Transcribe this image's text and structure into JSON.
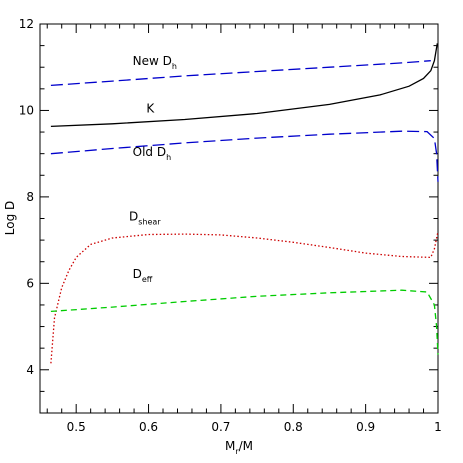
{
  "chart_data": {
    "type": "line",
    "title": "",
    "xlabel": "M_r/M",
    "ylabel": "Log D",
    "xlim": [
      0.45,
      1.0
    ],
    "ylim": [
      3.0,
      12.0
    ],
    "grid": false,
    "x_ticks": [
      0.5,
      0.6,
      0.7,
      0.8,
      0.9,
      1.0
    ],
    "x_tick_labels": [
      "0.5",
      "0.6",
      "0.7",
      "0.8",
      "0.9",
      "1"
    ],
    "y_ticks": [
      4,
      6,
      8,
      10,
      12
    ],
    "y_tick_labels": [
      "4",
      "6",
      "8",
      "10",
      "12"
    ],
    "series": [
      {
        "name": "New D_h",
        "color": "#0000cc",
        "dash": "long-dash",
        "x": [
          0.465,
          0.55,
          0.65,
          0.75,
          0.85,
          0.95,
          0.99
        ],
        "y": [
          10.58,
          10.68,
          10.8,
          10.9,
          11.0,
          11.1,
          11.15
        ]
      },
      {
        "name": "K",
        "color": "#000000",
        "dash": "solid",
        "x": [
          0.465,
          0.55,
          0.65,
          0.75,
          0.85,
          0.92,
          0.96,
          0.98,
          0.99,
          0.995,
          0.999
        ],
        "y": [
          9.63,
          9.69,
          9.79,
          9.93,
          10.14,
          10.36,
          10.56,
          10.74,
          10.92,
          11.15,
          11.55
        ]
      },
      {
        "name": "Old D_h",
        "color": "#0000cc",
        "dash": "long-dash",
        "x": [
          0.465,
          0.55,
          0.65,
          0.75,
          0.85,
          0.95,
          0.985,
          0.995,
          0.998,
          1.0
        ],
        "y": [
          9.0,
          9.12,
          9.25,
          9.36,
          9.45,
          9.52,
          9.51,
          9.35,
          9.0,
          8.35
        ]
      },
      {
        "name": "D_shear",
        "color": "#cc0000",
        "dash": "dotted",
        "x": [
          0.465,
          0.47,
          0.48,
          0.49,
          0.5,
          0.52,
          0.55,
          0.6,
          0.65,
          0.7,
          0.75,
          0.8,
          0.85,
          0.9,
          0.95,
          0.99,
          0.995,
          1.0
        ],
        "y": [
          4.15,
          5.2,
          5.9,
          6.3,
          6.6,
          6.9,
          7.05,
          7.13,
          7.14,
          7.12,
          7.05,
          6.95,
          6.83,
          6.7,
          6.62,
          6.6,
          6.8,
          7.2
        ]
      },
      {
        "name": "D_eff",
        "color": "#00cc00",
        "dash": "dashed",
        "x": [
          0.465,
          0.55,
          0.65,
          0.75,
          0.85,
          0.95,
          0.985,
          0.995,
          0.998,
          1.0
        ],
        "y": [
          5.35,
          5.45,
          5.58,
          5.7,
          5.78,
          5.84,
          5.8,
          5.5,
          5.0,
          4.35
        ]
      }
    ],
    "annotations": [
      {
        "main": "New D",
        "sub": "h",
        "x": 0.578,
        "y": 11.05
      },
      {
        "main": "K",
        "sub": "",
        "x": 0.597,
        "y": 9.95
      },
      {
        "main": "Old D",
        "sub": "h",
        "x": 0.578,
        "y": 8.95
      },
      {
        "main": "D",
        "sub": "shear",
        "x": 0.573,
        "y": 7.45
      },
      {
        "main": "D",
        "sub": "eff",
        "x": 0.578,
        "y": 6.12
      }
    ]
  }
}
